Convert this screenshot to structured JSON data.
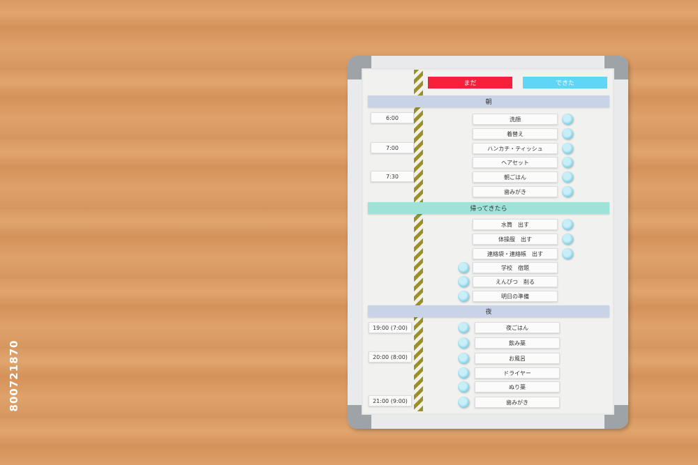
{
  "watermark": "800721870",
  "board": {
    "status_tags": [
      {
        "label": "まだ",
        "color": "#f5203a"
      },
      {
        "label": "できた",
        "color": "#5fd6f3"
      }
    ],
    "sections": [
      {
        "title": "朝",
        "color": "#c8d3e8",
        "times": [
          "6:00",
          "7:00",
          "7:30"
        ],
        "tasks": [
          "洗顔",
          "着替え",
          "ハンカチ・ティッシュ",
          "ヘアセット",
          "朝ごはん",
          "歯みがき"
        ],
        "magnet_side": [
          "right",
          "right",
          "right",
          "right",
          "right",
          "right"
        ]
      },
      {
        "title": "帰ってきたら",
        "color": "#9ee3d8",
        "times": [],
        "tasks": [
          "水筒　出す",
          "体操服　出す",
          "連絡袋・連絡帳　出す",
          "学校　宿題",
          "えんぴつ　削る",
          "明日の準備"
        ],
        "magnet_side": [
          "right",
          "right",
          "right",
          "left",
          "left",
          "left"
        ]
      },
      {
        "title": "夜",
        "color": "#c8d3e8",
        "times": [
          "19:00 (7:00)",
          "20:00 (8:00)",
          "21:00 (9:00)"
        ],
        "tasks": [
          "夜ごはん",
          "飲み薬",
          "お風呂",
          "ドライヤー",
          "ぬり薬",
          "歯みがき"
        ],
        "magnet_side": [
          "left",
          "left",
          "left",
          "left",
          "left",
          "left"
        ]
      }
    ]
  }
}
